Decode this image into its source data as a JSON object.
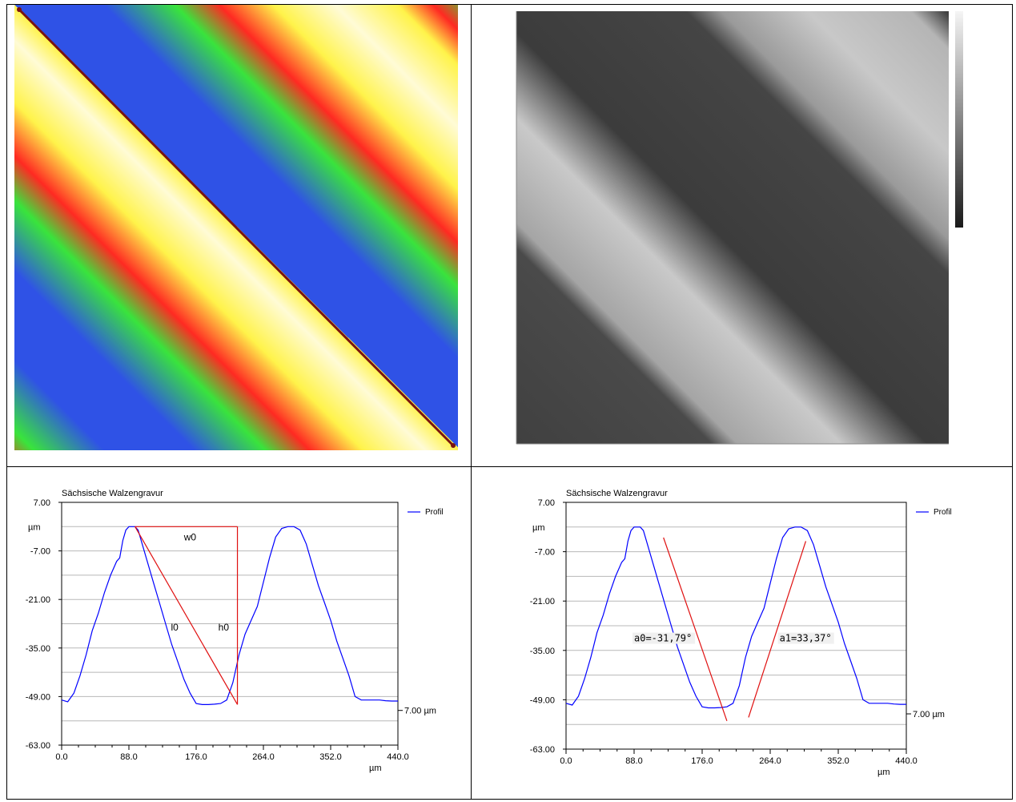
{
  "chart_data": [
    {
      "type": "heatmap",
      "description_colors": [
        "#2f52e6",
        "#39e43c",
        "#ff2a22",
        "#fff34a",
        "#fffbd6"
      ]
    },
    {
      "type": "heatmap",
      "colorscale": "grayscale"
    },
    {
      "type": "line",
      "title": "Sächsische Walzengravur",
      "ylabel": "µm",
      "xlabel": "µm",
      "xlim": [
        0,
        440
      ],
      "ylim": [
        -63,
        7
      ],
      "xticks": [
        "0.0",
        "88.0",
        "176.0",
        "264.0",
        "352.0",
        "440.0"
      ],
      "yticks": [
        "7.00",
        "-7.00",
        "-21.00",
        "-35.00",
        "-49.00",
        "-63.00"
      ],
      "scale_label": "7.00 µm",
      "series": [
        {
          "name": "Profil",
          "color": "#0000ff",
          "x": [
            0,
            8,
            16,
            24,
            32,
            40,
            48,
            56,
            64,
            72,
            76,
            80,
            84,
            88,
            92,
            96,
            100,
            104,
            112,
            120,
            128,
            136,
            144,
            152,
            160,
            168,
            176,
            184,
            192,
            200,
            208,
            216,
            224,
            232,
            240,
            248,
            256,
            264,
            272,
            280,
            288,
            296,
            304,
            312,
            320,
            328,
            336,
            344,
            352,
            360,
            368,
            376,
            384,
            392,
            400,
            408,
            416,
            424,
            432,
            440
          ],
          "y": [
            -50,
            -50.5,
            -48,
            -43,
            -37,
            -30,
            -25,
            -19,
            -14,
            -10,
            -9,
            -4,
            -1,
            0,
            0,
            0,
            -1,
            -4,
            -10,
            -16,
            -22,
            -28,
            -34,
            -39,
            -44,
            -48,
            -51,
            -51.3,
            -51.3,
            -51.2,
            -51,
            -50,
            -45,
            -37,
            -31,
            -27,
            -23,
            -16,
            -9,
            -3,
            -0.5,
            0,
            0,
            -1,
            -5,
            -11,
            -17,
            -22,
            -27,
            -33,
            -38,
            -43,
            -49,
            -50,
            -50,
            -50,
            -50,
            -50.2,
            -50.3,
            -50.3
          ]
        }
      ],
      "annotations": [
        "w0",
        "l0",
        "h0"
      ]
    },
    {
      "type": "line",
      "title": "Sächsische Walzengravur",
      "ylabel": "µm",
      "xlabel": "µm",
      "xlim": [
        0,
        440
      ],
      "ylim": [
        -63,
        7
      ],
      "xticks": [
        "0.0",
        "88.0",
        "176.0",
        "264.0",
        "352.0",
        "440.0"
      ],
      "yticks": [
        "7.00",
        "-7.00",
        "-21.00",
        "-35.00",
        "-49.00",
        "-63.00"
      ],
      "scale_label": "7.00 µm",
      "series": [
        {
          "name": "Profil",
          "color": "#0000ff",
          "x": [
            0,
            8,
            16,
            24,
            32,
            40,
            48,
            56,
            64,
            72,
            76,
            80,
            84,
            88,
            92,
            96,
            100,
            104,
            112,
            120,
            128,
            136,
            144,
            152,
            160,
            168,
            176,
            184,
            192,
            200,
            208,
            216,
            224,
            232,
            240,
            248,
            256,
            264,
            272,
            280,
            288,
            296,
            304,
            312,
            320,
            328,
            336,
            344,
            352,
            360,
            368,
            376,
            384,
            392,
            400,
            408,
            416,
            424,
            432,
            440
          ],
          "y": [
            -50,
            -50.5,
            -48,
            -43,
            -37,
            -30,
            -25,
            -19,
            -14,
            -10,
            -9,
            -4,
            -1,
            0,
            0,
            0,
            -1,
            -4,
            -10,
            -16,
            -22,
            -28,
            -34,
            -39,
            -44,
            -48,
            -51,
            -51.3,
            -51.3,
            -51.2,
            -51,
            -50,
            -45,
            -37,
            -31,
            -27,
            -23,
            -16,
            -9,
            -3,
            -0.5,
            0,
            0,
            -1,
            -5,
            -11,
            -17,
            -22,
            -27,
            -33,
            -38,
            -43,
            -49,
            -50,
            -50,
            -50,
            -50,
            -50.2,
            -50.3,
            -50.3
          ]
        }
      ],
      "annotations": [
        "a0=-31,79°",
        "a1=33,37°"
      ]
    }
  ]
}
